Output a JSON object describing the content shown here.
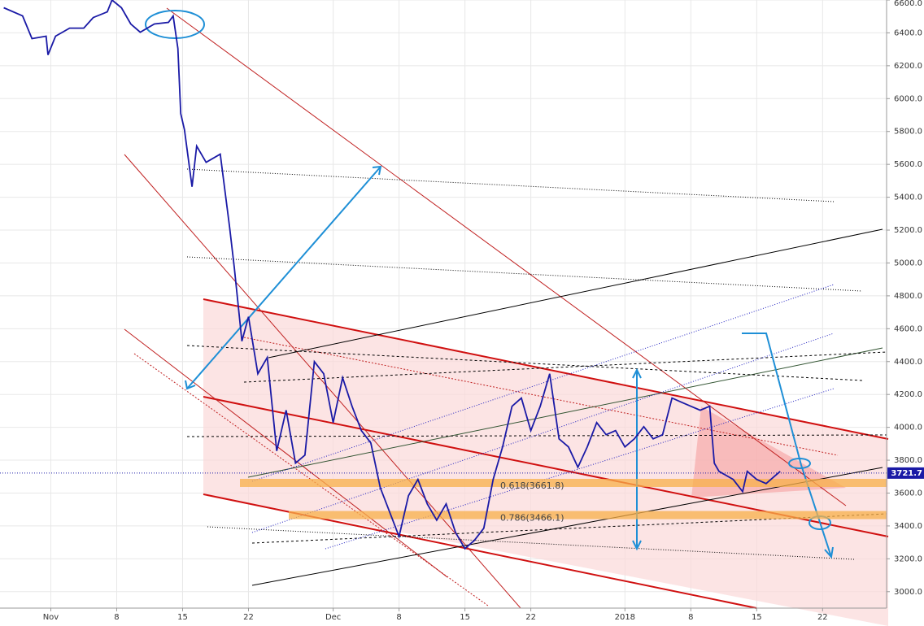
{
  "chart_data": {
    "type": "line",
    "x": [
      -5,
      -3,
      -2,
      -0.5,
      -0.3,
      0.5,
      2,
      3.5,
      4.5,
      6,
      6.5,
      7.5,
      8.5,
      9.5,
      11,
      12.5,
      13,
      13.5,
      13.8,
      14.2,
      15,
      15.5,
      16.5,
      18,
      19,
      19.5,
      20.3,
      21,
      22,
      23,
      24,
      25,
      26,
      27,
      28,
      29,
      30,
      31,
      32,
      33,
      34,
      35,
      36,
      37,
      38,
      39,
      40,
      41,
      42,
      43,
      44,
      45,
      46,
      47,
      48,
      49,
      50,
      51,
      52,
      53,
      54,
      55,
      56,
      57,
      58,
      59,
      60,
      61,
      62,
      63,
      64,
      65,
      66,
      67,
      68,
      69,
      70,
      70.5,
      71,
      72.5,
      73.5,
      74,
      75,
      76,
      77,
      77.5
    ],
    "series": [
      {
        "color": "#1a1aa6",
        "values": [
          6553,
          6503,
          6365,
          6380,
          6266,
          6380,
          6429,
          6429,
          6493,
          6528,
          6600,
          6553,
          6454,
          6404,
          6454,
          6464,
          6503,
          6305,
          5909,
          5810,
          5464,
          5711,
          5612,
          5662,
          5217,
          4970,
          4524,
          4673,
          4326,
          4425,
          3856,
          4104,
          3782,
          3831,
          4400,
          4326,
          4029,
          4302,
          4128,
          3980,
          3905,
          3633,
          3485,
          3336,
          3584,
          3683,
          3534,
          3435,
          3534,
          3361,
          3262,
          3312,
          3386,
          3683,
          3881,
          4128,
          4178,
          3980,
          4128,
          4326,
          3930,
          3881,
          3757,
          3881,
          4029,
          3955,
          3980,
          3881,
          3930,
          4004,
          3930,
          3955,
          4178,
          4153,
          4128,
          4104,
          4128,
          3782,
          3732,
          3683,
          3609,
          3732,
          3683,
          3658,
          3708,
          3732
        ]
      }
    ],
    "xlim": [
      -5.4,
      88.8
    ],
    "xticks": [
      {
        "value": 0,
        "label": "Nov"
      },
      {
        "value": 7,
        "label": "8"
      },
      {
        "value": 14,
        "label": "15"
      },
      {
        "value": 21,
        "label": "22"
      },
      {
        "value": 30,
        "label": "Dec"
      },
      {
        "value": 37,
        "label": "8"
      },
      {
        "value": 44,
        "label": "15"
      },
      {
        "value": 51,
        "label": "22"
      },
      {
        "value": 61,
        "label": "2018"
      },
      {
        "value": 68,
        "label": "8"
      },
      {
        "value": 75,
        "label": "15"
      },
      {
        "value": 82,
        "label": "22"
      }
    ],
    "ylim": [
      2900,
      6600
    ],
    "yticks": [
      {
        "value": 3000,
        "label": "3000.0"
      },
      {
        "value": 3200,
        "label": "3200.0"
      },
      {
        "value": 3400,
        "label": "3400.0"
      },
      {
        "value": 3600,
        "label": "3600.0"
      },
      {
        "value": 3800,
        "label": "3800.0"
      },
      {
        "value": 4000,
        "label": "4000.0"
      },
      {
        "value": 4200,
        "label": "4200.0"
      },
      {
        "value": 4400,
        "label": "4400.0"
      },
      {
        "value": 4600,
        "label": "4600.0"
      },
      {
        "value": 4800,
        "label": "4800.0"
      },
      {
        "value": 5000,
        "label": "5000.0"
      },
      {
        "value": 5200,
        "label": "5200.0"
      },
      {
        "value": 5400,
        "label": "5400.0"
      },
      {
        "value": 5600,
        "label": "5600.0"
      },
      {
        "value": 5800,
        "label": "5800.0"
      },
      {
        "value": 6000,
        "label": "6000.0"
      },
      {
        "value": 6200,
        "label": "6200.0"
      },
      {
        "value": 6400,
        "label": "6400.0"
      },
      {
        "value": 6600,
        "label": "6600.0"
      }
    ],
    "grid": true,
    "last_value": 3721.7,
    "fib_levels": [
      {
        "value": 3661.8,
        "label": "0.618(3661.8)"
      },
      {
        "value": 3466.1,
        "label": "0.786(3466.1)"
      }
    ]
  }
}
